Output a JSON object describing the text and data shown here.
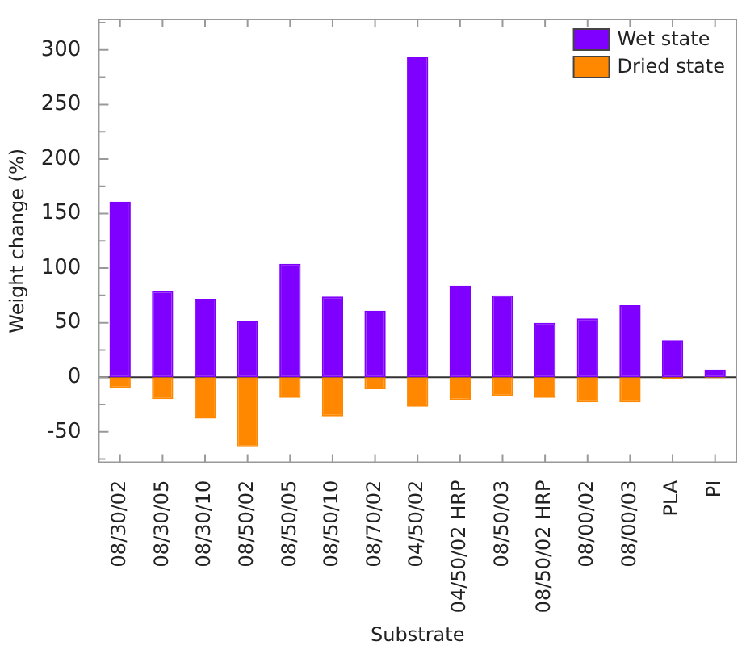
{
  "chart_data": {
    "type": "bar",
    "xlabel": "Substrate",
    "ylabel": "Weight change (%)",
    "categories": [
      "08/30/02",
      "08/30/05",
      "08/30/10",
      "08/50/02",
      "08/50/05",
      "08/50/10",
      "08/70/02",
      "04/50/02",
      "04/50/02 HRP",
      "08/50/03",
      "08/50/02 HRP",
      "08/00/02",
      "08/00/03",
      "PLA",
      "PI"
    ],
    "series": [
      {
        "name": "Wet state",
        "color": "#8000ff",
        "values": [
          161,
          79,
          72,
          52,
          104,
          74,
          61,
          294,
          84,
          75,
          50,
          54,
          66,
          34,
          7
        ]
      },
      {
        "name": "Dried state",
        "color": "#ff8800",
        "values": [
          -10,
          -20,
          -38,
          -64,
          -19,
          -36,
          -11,
          -27,
          -21,
          -17,
          -19,
          -23,
          -23,
          -2,
          -1
        ]
      }
    ],
    "stacked": true,
    "ylim": [
      -78,
      328
    ],
    "yticks": [
      {
        "value": -75,
        "label": null
      },
      -50,
      {
        "value": -25,
        "label": null
      },
      0,
      {
        "value": 25,
        "label": null
      },
      50,
      {
        "value": 75,
        "label": null
      },
      100,
      {
        "value": 125,
        "label": null
      },
      150,
      {
        "value": 175,
        "label": null
      },
      200,
      {
        "value": 225,
        "label": null
      },
      250,
      {
        "value": 275,
        "label": null
      },
      300,
      {
        "value": 325,
        "label": null
      }
    ],
    "ref_lines": [
      {
        "axis": "y",
        "value": 0,
        "color": "#333333"
      }
    ],
    "grid": false,
    "legend": "top right"
  }
}
